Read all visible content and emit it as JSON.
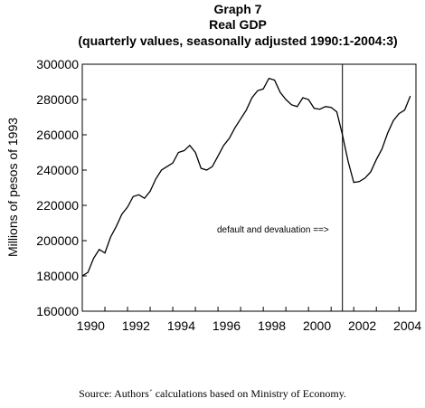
{
  "chart_data": {
    "type": "line",
    "title": "Graph 7",
    "subtitle": "Real GDP",
    "subtitle2": "(quarterly values, seasonally adjusted 1990:1-2004:3)",
    "xlabel": "",
    "ylabel": "Millions of pesos of 1993",
    "xlim": [
      1990.0,
      2004.75
    ],
    "ylim": [
      160000,
      300000
    ],
    "x_ticks": [
      1990,
      1992,
      1994,
      1996,
      1998,
      2000,
      2002,
      2004
    ],
    "y_ticks": [
      160000,
      180000,
      200000,
      220000,
      240000,
      260000,
      280000,
      300000
    ],
    "grid": false,
    "annotation": "default and devaluation ==>",
    "vline_x": 2001.5,
    "series": [
      {
        "x": [
          1990.0,
          1990.25,
          1990.5,
          1990.75,
          1991.0,
          1991.25,
          1991.5,
          1991.75,
          1992.0,
          1992.25,
          1992.5,
          1992.75,
          1993.0,
          1993.25,
          1993.5,
          1993.75,
          1994.0,
          1994.25,
          1994.5,
          1994.75,
          1995.0,
          1995.25,
          1995.5,
          1995.75,
          1996.0,
          1996.25,
          1996.5,
          1996.75,
          1997.0,
          1997.25,
          1997.5,
          1997.75,
          1998.0,
          1998.25,
          1998.5,
          1998.75,
          1999.0,
          1999.25,
          1999.5,
          1999.75,
          2000.0,
          2000.25,
          2000.5,
          2000.75,
          2001.0,
          2001.25,
          2001.5,
          2001.75,
          2002.0,
          2002.25,
          2002.5,
          2002.75,
          2003.0,
          2003.25,
          2003.5,
          2003.75,
          2004.0,
          2004.25,
          2004.5
        ],
        "values": [
          180000,
          182000,
          190000,
          195000,
          193000,
          202000,
          208000,
          215000,
          219000,
          225000,
          226000,
          224000,
          228000,
          235000,
          240000,
          242000,
          244000,
          250000,
          251000,
          254000,
          250000,
          241000,
          240000,
          242000,
          248000,
          254000,
          258000,
          264000,
          269000,
          274000,
          281000,
          285000,
          286000,
          292000,
          291000,
          284000,
          280000,
          277000,
          276000,
          281000,
          280000,
          275000,
          274500,
          276000,
          275500,
          273000,
          260000,
          245000,
          233000,
          233500,
          235500,
          239000,
          246000,
          252000,
          261000,
          268000,
          272000,
          274000,
          282000
        ]
      }
    ]
  },
  "source": "Source: Authors´ calculations based on Ministry of Economy."
}
